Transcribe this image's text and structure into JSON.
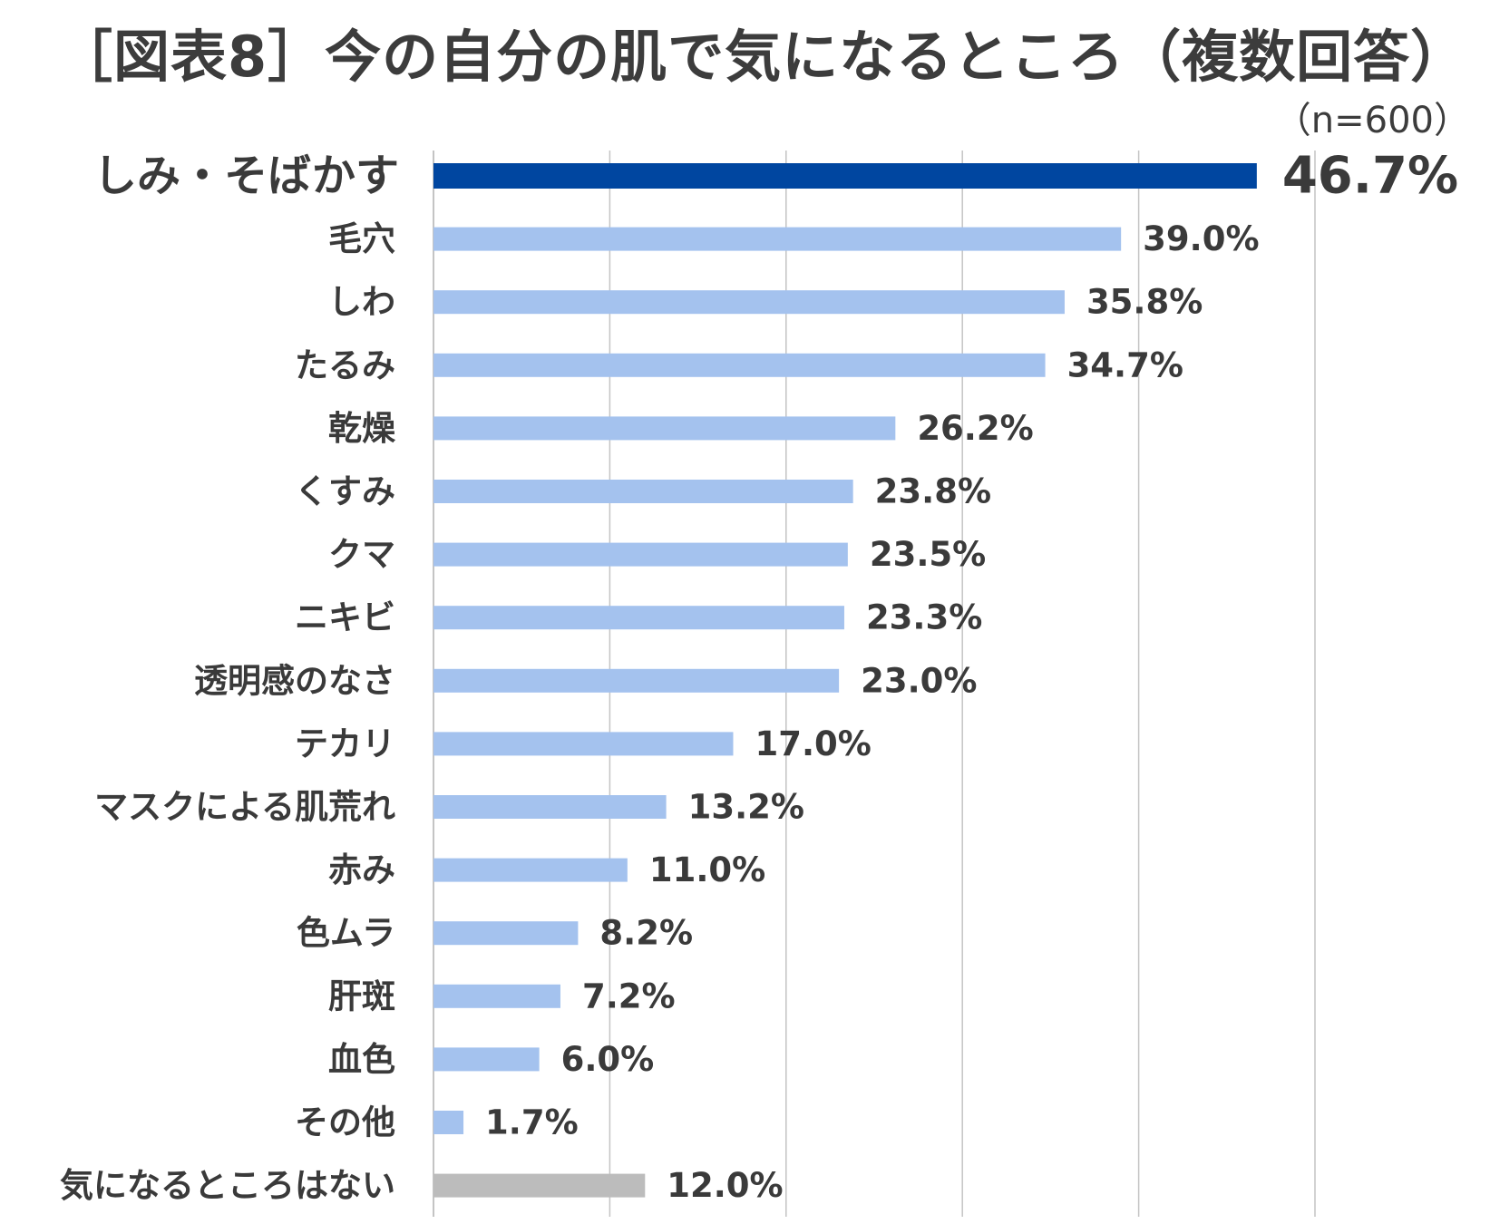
{
  "title": "［図表8］今の自分の肌で気になるところ（複数回答）",
  "subtitle": "（n=600）",
  "colors": {
    "highlight": "#0046a0",
    "bar": "#a4c2ee",
    "none": "#bcbcbc",
    "grid": "#c4c4c4",
    "text": "#3a3a3a"
  },
  "chart_data": {
    "type": "bar",
    "orientation": "horizontal",
    "title": "［図表8］今の自分の肌で気になるところ（複数回答）",
    "xlabel": "",
    "ylabel": "",
    "xlim": [
      0,
      50
    ],
    "grid": true,
    "value_suffix": "%",
    "categories": [
      "しみ・そばかす",
      "毛穴",
      "しわ",
      "たるみ",
      "乾燥",
      "くすみ",
      "クマ",
      "ニキビ",
      "透明感のなさ",
      "テカリ",
      "マスクによる肌荒れ",
      "赤み",
      "色ムラ",
      "肝斑",
      "血色",
      "その他",
      "気になるところはない"
    ],
    "values": [
      46.7,
      39.0,
      35.8,
      34.7,
      26.2,
      23.8,
      23.5,
      23.3,
      23.0,
      17.0,
      13.2,
      11.0,
      8.2,
      7.2,
      6.0,
      1.7,
      12.0
    ],
    "labels": [
      "46.7%",
      "39.0%",
      "35.8%",
      "34.7%",
      "26.2%",
      "23.8%",
      "23.5%",
      "23.3%",
      "23.0%",
      "17.0%",
      "13.2%",
      "11.0%",
      "8.2%",
      "7.2%",
      "6.0%",
      "1.7%",
      "12.0%"
    ],
    "bar_styles": [
      "highlight",
      "normal",
      "normal",
      "normal",
      "normal",
      "normal",
      "normal",
      "normal",
      "normal",
      "normal",
      "normal",
      "normal",
      "normal",
      "normal",
      "normal",
      "normal",
      "none"
    ]
  }
}
